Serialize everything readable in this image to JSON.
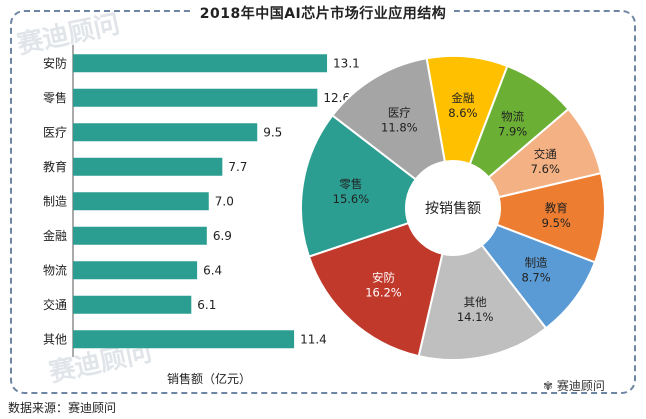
{
  "title": "2018年中国AI芯片市场行业应用结构",
  "source": "数据来源：赛迪顾问",
  "brand": "赛迪顾问",
  "watermark": "赛迪顾问",
  "colors": {
    "bar": "#2b9e91",
    "frame": "#6d86a3",
    "pie": [
      "#ffc000",
      "#6bb034",
      "#f4b183",
      "#ed7d31",
      "#5b9bd5",
      "#bfbfbf",
      "#c0392b",
      "#2b9e91",
      "#a5a5a5"
    ]
  },
  "chart_data": [
    {
      "type": "bar",
      "orientation": "horizontal",
      "categories": [
        "安防",
        "零售",
        "医疗",
        "教育",
        "制造",
        "金融",
        "物流",
        "交通",
        "其他"
      ],
      "values": [
        13.1,
        12.6,
        9.5,
        7.7,
        7.0,
        6.9,
        6.4,
        6.1,
        11.4
      ],
      "value_labels": [
        "13.1",
        "12.6",
        "9.5",
        "7.7",
        "7.0",
        "6.9",
        "6.4",
        "6.1",
        "11.4"
      ],
      "xlabel": "销售额（亿元）",
      "xlim": [
        0,
        16.5
      ]
    },
    {
      "type": "pie",
      "style": "donut",
      "center_label": "按销售额",
      "slices": [
        {
          "label": "金融",
          "value": 8.6,
          "pct": "8.6%"
        },
        {
          "label": "物流",
          "value": 7.9,
          "pct": "7.9%"
        },
        {
          "label": "交通",
          "value": 7.6,
          "pct": "7.6%"
        },
        {
          "label": "教育",
          "value": 9.5,
          "pct": "9.5%"
        },
        {
          "label": "制造",
          "value": 8.7,
          "pct": "8.7%"
        },
        {
          "label": "其他",
          "value": 14.1,
          "pct": "14.1%"
        },
        {
          "label": "安防",
          "value": 16.2,
          "pct": "16.2%"
        },
        {
          "label": "零售",
          "value": 15.6,
          "pct": "15.6%"
        },
        {
          "label": "医疗",
          "value": 11.8,
          "pct": "11.8%"
        }
      ]
    }
  ]
}
